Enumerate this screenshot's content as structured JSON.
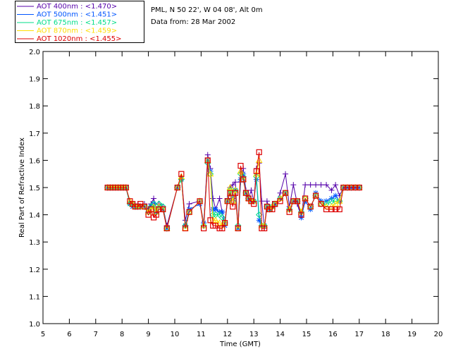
{
  "chart_data": {
    "type": "line",
    "info_lines": [
      "PML, N 50 22', W 04 08', Alt 0m",
      "Data from: 28 Mar 2002"
    ],
    "xlabel": "Time (GMT)",
    "ylabel": "Real Part of Refractive Index",
    "xlim": [
      5,
      20
    ],
    "ylim": [
      1.0,
      2.0
    ],
    "x_ticks": [
      5,
      6,
      7,
      8,
      9,
      10,
      11,
      12,
      13,
      14,
      15,
      16,
      17,
      18,
      19,
      20
    ],
    "y_ticks": [
      1.0,
      1.1,
      1.2,
      1.3,
      1.4,
      1.5,
      1.6,
      1.7,
      1.8,
      1.9,
      2.0
    ],
    "x_tick_labels": [
      "5",
      "6",
      "7",
      "8",
      "9",
      "10",
      "11",
      "12",
      "13",
      "14",
      "15",
      "16",
      "17",
      "18",
      "19",
      "20"
    ],
    "y_tick_labels": [
      "1.0",
      "1.1",
      "1.2",
      "1.3",
      "1.4",
      "1.5",
      "1.6",
      "1.7",
      "1.8",
      "1.9",
      "2.0"
    ],
    "legend_position": "top-left, outside plot",
    "x": [
      7.45,
      7.55,
      7.65,
      7.75,
      7.85,
      7.95,
      8.05,
      8.15,
      8.3,
      8.4,
      8.5,
      8.6,
      8.7,
      8.85,
      9.0,
      9.1,
      9.2,
      9.3,
      9.4,
      9.55,
      9.7,
      10.1,
      10.25,
      10.4,
      10.55,
      10.95,
      11.1,
      11.25,
      11.35,
      11.45,
      11.55,
      11.7,
      11.8,
      11.9,
      12.0,
      12.1,
      12.2,
      12.3,
      12.4,
      12.5,
      12.6,
      12.7,
      12.8,
      12.9,
      13.0,
      13.1,
      13.2,
      13.3,
      13.4,
      13.5,
      13.6,
      13.7,
      13.8,
      14.0,
      14.2,
      14.35,
      14.5,
      14.65,
      14.8,
      14.95,
      15.15,
      15.35,
      15.55,
      15.75,
      15.95,
      16.1,
      16.25,
      16.4,
      16.55,
      16.7,
      16.85,
      17.0
    ],
    "series": [
      {
        "name": "AOT  400nm : <1.470>",
        "color": "#5500aa",
        "marker": "plus",
        "values": [
          1.5,
          1.5,
          1.5,
          1.5,
          1.5,
          1.5,
          1.5,
          1.5,
          1.44,
          1.44,
          1.43,
          1.44,
          1.43,
          1.44,
          1.42,
          1.44,
          1.46,
          1.42,
          1.44,
          1.43,
          1.36,
          1.5,
          1.54,
          1.38,
          1.44,
          1.45,
          1.37,
          1.62,
          1.57,
          1.46,
          1.42,
          1.46,
          1.41,
          1.37,
          1.46,
          1.5,
          1.51,
          1.52,
          1.36,
          1.52,
          1.57,
          1.49,
          1.46,
          1.49,
          1.45,
          1.57,
          1.59,
          1.45,
          1.35,
          1.45,
          1.42,
          1.43,
          1.43,
          1.48,
          1.55,
          1.43,
          1.51,
          1.44,
          1.39,
          1.51,
          1.51,
          1.51,
          1.51,
          1.51,
          1.49,
          1.51,
          1.47,
          1.5,
          1.5,
          1.5,
          1.5,
          1.5
        ]
      },
      {
        "name": "AOT  500nm : <1.451>",
        "color": "#0055ff",
        "marker": "asterisk",
        "values": [
          1.5,
          1.5,
          1.5,
          1.5,
          1.5,
          1.5,
          1.5,
          1.5,
          1.44,
          1.43,
          1.43,
          1.43,
          1.43,
          1.43,
          1.42,
          1.43,
          1.44,
          1.41,
          1.43,
          1.42,
          1.35,
          1.5,
          1.53,
          1.36,
          1.42,
          1.44,
          1.37,
          1.6,
          1.56,
          1.42,
          1.42,
          1.41,
          1.41,
          1.36,
          1.45,
          1.48,
          1.46,
          1.49,
          1.35,
          1.53,
          1.55,
          1.48,
          1.46,
          1.45,
          1.45,
          1.53,
          1.38,
          1.36,
          1.36,
          1.43,
          1.42,
          1.43,
          1.44,
          1.46,
          1.48,
          1.42,
          1.45,
          1.45,
          1.39,
          1.45,
          1.42,
          1.48,
          1.45,
          1.45,
          1.46,
          1.47,
          1.45,
          1.5,
          1.5,
          1.5,
          1.5,
          1.5
        ]
      },
      {
        "name": "AOT  675nm : <1.457>",
        "color": "#00dd88",
        "marker": "diamond",
        "values": [
          1.5,
          1.5,
          1.5,
          1.5,
          1.5,
          1.5,
          1.5,
          1.5,
          1.44,
          1.44,
          1.43,
          1.43,
          1.43,
          1.43,
          1.41,
          1.43,
          1.44,
          1.41,
          1.44,
          1.43,
          1.35,
          1.5,
          1.53,
          1.36,
          1.41,
          1.45,
          1.36,
          1.59,
          1.55,
          1.4,
          1.4,
          1.4,
          1.39,
          1.37,
          1.45,
          1.49,
          1.45,
          1.49,
          1.36,
          1.55,
          1.54,
          1.48,
          1.46,
          1.45,
          1.45,
          1.54,
          1.4,
          1.36,
          1.36,
          1.43,
          1.42,
          1.43,
          1.44,
          1.46,
          1.48,
          1.42,
          1.45,
          1.45,
          1.41,
          1.46,
          1.43,
          1.47,
          1.44,
          1.44,
          1.45,
          1.45,
          1.45,
          1.5,
          1.5,
          1.5,
          1.5,
          1.5
        ]
      },
      {
        "name": "AOT  870nm : <1.459>",
        "color": "#ffdd00",
        "marker": "triangle",
        "values": [
          1.5,
          1.5,
          1.5,
          1.5,
          1.5,
          1.5,
          1.5,
          1.5,
          1.45,
          1.44,
          1.43,
          1.43,
          1.43,
          1.43,
          1.41,
          1.42,
          1.43,
          1.41,
          1.43,
          1.42,
          1.35,
          1.5,
          1.54,
          1.35,
          1.41,
          1.45,
          1.36,
          1.6,
          1.55,
          1.38,
          1.38,
          1.37,
          1.36,
          1.37,
          1.45,
          1.5,
          1.45,
          1.49,
          1.35,
          1.56,
          1.53,
          1.48,
          1.46,
          1.45,
          1.45,
          1.55,
          1.6,
          1.36,
          1.36,
          1.43,
          1.42,
          1.43,
          1.44,
          1.46,
          1.48,
          1.42,
          1.45,
          1.45,
          1.41,
          1.46,
          1.43,
          1.47,
          1.44,
          1.43,
          1.43,
          1.44,
          1.45,
          1.5,
          1.5,
          1.5,
          1.5,
          1.5
        ]
      },
      {
        "name": "AOT 1020nm : <1.455>",
        "color": "#dd0000",
        "marker": "square",
        "values": [
          1.5,
          1.5,
          1.5,
          1.5,
          1.5,
          1.5,
          1.5,
          1.5,
          1.45,
          1.44,
          1.43,
          1.43,
          1.44,
          1.43,
          1.4,
          1.42,
          1.39,
          1.4,
          1.42,
          1.42,
          1.35,
          1.5,
          1.55,
          1.35,
          1.41,
          1.45,
          1.35,
          1.6,
          1.38,
          1.36,
          1.36,
          1.35,
          1.35,
          1.37,
          1.45,
          1.48,
          1.43,
          1.48,
          1.35,
          1.58,
          1.53,
          1.48,
          1.46,
          1.45,
          1.44,
          1.56,
          1.63,
          1.35,
          1.35,
          1.43,
          1.42,
          1.42,
          1.44,
          1.45,
          1.48,
          1.41,
          1.45,
          1.45,
          1.4,
          1.46,
          1.43,
          1.47,
          1.44,
          1.42,
          1.42,
          1.42,
          1.42,
          1.5,
          1.5,
          1.5,
          1.5,
          1.5
        ]
      }
    ]
  }
}
